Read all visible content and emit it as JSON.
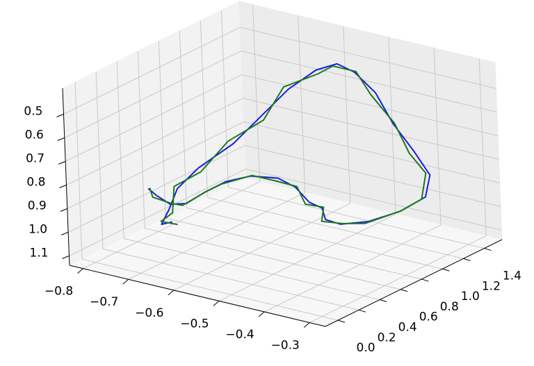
{
  "chart_data": {
    "type": "line3d",
    "xlim": [
      -0.83,
      -0.265
    ],
    "ylim": [
      -0.12,
      1.57
    ],
    "zlim": [
      1.14,
      0.39
    ],
    "xticks": [
      {
        "value": -0.8,
        "label": "−0.8"
      },
      {
        "value": -0.7,
        "label": "−0.7"
      },
      {
        "value": -0.6,
        "label": "−0.6"
      },
      {
        "value": -0.5,
        "label": "−0.5"
      },
      {
        "value": -0.4,
        "label": "−0.4"
      },
      {
        "value": -0.3,
        "label": "−0.3"
      }
    ],
    "yticks": [
      {
        "value": 0,
        "label": "0.0"
      },
      0.2,
      0.4,
      0.6,
      0.8,
      {
        "value": 1,
        "label": "1.0"
      },
      1.2,
      1.4
    ],
    "zticks": [
      0.5,
      0.6,
      0.7,
      0.8,
      0.9,
      {
        "value": 1,
        "label": "1.0"
      },
      1.1
    ],
    "grid": true,
    "series": [
      {
        "color": "#1a1ae6",
        "x": [
          -0.726,
          -0.708,
          -0.715,
          -0.738,
          -0.742,
          -0.736,
          -0.723,
          -0.683,
          -0.645,
          -0.605,
          -0.554,
          -0.515,
          -0.45,
          -0.391,
          -0.349,
          -0.344,
          -0.366,
          -0.409,
          -0.442,
          -0.479,
          -0.492,
          -0.528,
          -0.567,
          -0.62,
          -0.667,
          -0.687,
          -0.714,
          -0.734,
          -0.756,
          -0.776,
          -0.809
        ],
        "y": [
          0.424,
          0.245,
          0.351,
          0.533,
          0.754,
          1.065,
          1.281,
          1.381,
          1.487,
          1.518,
          1.463,
          1.489,
          1.369,
          1.305,
          1.271,
          1.2,
          1.046,
          0.929,
          0.806,
          0.821,
          0.848,
          0.882,
          0.921,
          0.985,
          0.926,
          0.776,
          0.691,
          0.595,
          0.536,
          0.494,
          0.559
        ],
        "z": [
          1.027,
          0.99,
          0.953,
          0.915,
          0.878,
          0.84,
          0.765,
          0.653,
          0.578,
          0.54,
          0.54,
          0.615,
          0.69,
          0.765,
          0.84,
          0.915,
          0.953,
          0.99,
          0.99,
          0.99,
          0.953,
          0.953,
          0.915,
          0.915,
          0.915,
          0.915,
          0.953,
          0.99,
          0.99,
          0.953,
          0.953
        ]
      },
      {
        "color": "#1a7a1a",
        "x": [
          -0.716,
          -0.712,
          -0.705,
          -0.742,
          -0.734,
          -0.744,
          -0.715,
          -0.691,
          -0.638,
          -0.612,
          -0.548,
          -0.522,
          -0.444,
          -0.398,
          -0.355,
          -0.35,
          -0.36,
          -0.414,
          -0.436,
          -0.485,
          -0.486,
          -0.534,
          -0.561,
          -0.626,
          -0.661,
          -0.693,
          -0.708,
          -0.74,
          -0.75,
          -0.782,
          -0.803
        ],
        "y": [
          0.43,
          0.258,
          0.34,
          0.52,
          0.742,
          1.052,
          1.27,
          1.37,
          1.475,
          1.506,
          1.452,
          1.476,
          1.356,
          1.292,
          1.258,
          1.188,
          1.034,
          0.917,
          0.796,
          0.81,
          0.838,
          0.87,
          0.91,
          0.972,
          0.915,
          0.765,
          0.68,
          0.585,
          0.525,
          0.484,
          0.548
        ],
        "z": [
          1.035,
          0.982,
          0.961,
          0.905,
          0.888,
          0.83,
          0.775,
          0.645,
          0.588,
          0.55,
          0.532,
          0.625,
          0.682,
          0.775,
          0.832,
          0.925,
          0.945,
          0.998,
          0.982,
          0.998,
          0.945,
          0.961,
          0.907,
          0.925,
          0.907,
          0.925,
          0.945,
          0.998,
          0.982,
          0.961,
          0.945
        ]
      }
    ]
  }
}
